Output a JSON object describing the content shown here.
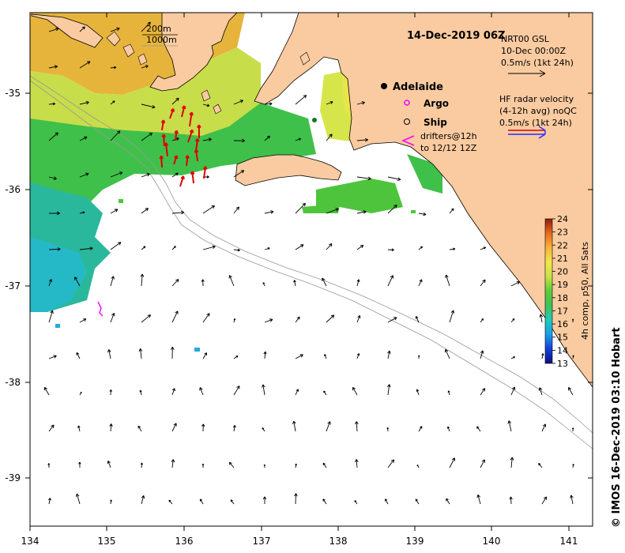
{
  "title": "14-Dec-2019 06Z",
  "depth_legend": [
    "200m",
    "1000m"
  ],
  "vector_legend": {
    "model_lines": [
      "NRT00 GSL",
      "10-Dec 00:00Z",
      "0.5m/s (1kt 24h)"
    ],
    "radar_lines": [
      "HF radar velocity",
      "(4-12h avg) noQC",
      "0.5m/s (1kt 24h)"
    ]
  },
  "places": {
    "city": "Adelaide"
  },
  "markers": {
    "argo": "Argo",
    "ship": "Ship",
    "drifters_1": "drifters@12h",
    "drifters_2": "to 12/12 12Z"
  },
  "axes": {
    "x_ticks": [
      "134",
      "135",
      "136",
      "137",
      "138",
      "139",
      "140",
      "141"
    ],
    "y_ticks": [
      "-35",
      "-36",
      "-37",
      "-38",
      "-39"
    ]
  },
  "colorbar": {
    "ticks": [
      "24",
      "23",
      "22",
      "21",
      "20",
      "19",
      "18",
      "17",
      "16",
      "15",
      "14",
      "13"
    ],
    "label": "4h comp, p50, All Sats"
  },
  "credit": "© IMOS 16-Dec-2019 03:10 Hobart",
  "colors": {
    "land": "#FACBA0",
    "arrow": "#000000",
    "hf_arrow": "#e00000",
    "argo": "#ff00ff",
    "drifter": "#ff00ff"
  },
  "chart_data": {
    "type": "map",
    "x_range": [
      134,
      141.3
    ],
    "y_range": [
      -39.45,
      -34.15
    ],
    "color_range": [
      13,
      24
    ]
  }
}
